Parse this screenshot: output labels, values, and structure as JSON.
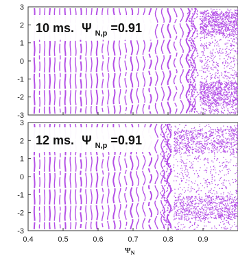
{
  "chart_data": [
    {
      "type": "scatter",
      "panel_label": {
        "time": "10 ms.",
        "psi": "Ψ",
        "psi_sub": "N,p",
        "value": "=0.91"
      },
      "xlim": [
        0.4,
        1.0
      ],
      "ylim": [
        -3,
        3
      ],
      "yticks": [
        "3",
        "2",
        "1",
        "0",
        "-1",
        "-2",
        "-3"
      ],
      "marker_color": "#b44fe6",
      "surfaces": [
        0.418,
        0.433,
        0.447,
        0.462,
        0.476,
        0.491,
        0.506,
        0.521,
        0.536,
        0.551,
        0.566,
        0.581,
        0.597,
        0.613,
        0.629,
        0.646,
        0.662,
        0.679,
        0.696,
        0.713,
        0.731,
        0.749,
        0.767,
        0.785,
        0.803,
        0.821,
        0.839,
        0.857,
        0.873
      ],
      "stochastic_region": [
        0.89,
        1.0
      ],
      "island_y_centers": [
        2.1,
        -1.8
      ]
    },
    {
      "type": "scatter",
      "panel_label": {
        "time": "12 ms.",
        "psi": "Ψ",
        "psi_sub": "N,p",
        "value": "=0.91"
      },
      "xlim": [
        0.4,
        1.0
      ],
      "ylim": [
        -3,
        3
      ],
      "yticks": [
        "3",
        "2",
        "1",
        "0",
        "-1",
        "-2",
        "-3"
      ],
      "marker_color": "#b44fe6",
      "surfaces": [
        0.418,
        0.433,
        0.447,
        0.462,
        0.476,
        0.491,
        0.506,
        0.521,
        0.536,
        0.551,
        0.566,
        0.581,
        0.597,
        0.613,
        0.629,
        0.646,
        0.662,
        0.679,
        0.696,
        0.713,
        0.731,
        0.749,
        0.767,
        0.785,
        0.803
      ],
      "stochastic_region": [
        0.815,
        1.0
      ],
      "island_y_centers": [
        2.0,
        -1.7
      ]
    }
  ],
  "xaxis": {
    "ticks": [
      {
        "value": 0.4,
        "label": "0.4"
      },
      {
        "value": 0.5,
        "label": "0.5"
      },
      {
        "value": 0.6,
        "label": "0.6"
      },
      {
        "value": 0.7,
        "label": "0.7"
      },
      {
        "value": 0.8,
        "label": "0.8"
      },
      {
        "value": 0.9,
        "label": "0.9"
      }
    ],
    "label": "Ψ",
    "label_sub": "N"
  }
}
